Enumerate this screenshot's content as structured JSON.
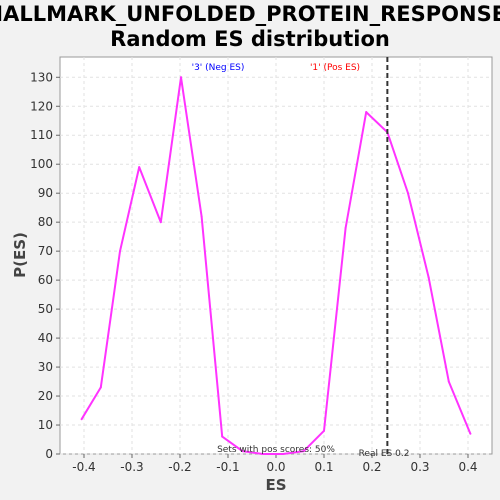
{
  "chart_data": {
    "type": "line",
    "title": "HALLMARK_UNFOLDED_PROTEIN_RESPONSE:",
    "subtitle": "Random ES distribution",
    "xlabel": "ES",
    "ylabel": "P(ES)",
    "xlim": [
      -0.45,
      0.45
    ],
    "ylim": [
      0,
      137
    ],
    "xticks": [
      "-0.4",
      "-0.3",
      "-0.2",
      "-0.1",
      "0.0",
      "0.1",
      "0.2",
      "0.3",
      "0.4"
    ],
    "xtick_values": [
      -0.4,
      -0.3,
      -0.2,
      -0.1,
      0.0,
      0.1,
      0.2,
      0.3,
      0.4
    ],
    "yticks": [
      "0",
      "10",
      "20",
      "30",
      "40",
      "50",
      "60",
      "70",
      "80",
      "90",
      "100",
      "110",
      "120",
      "130"
    ],
    "ytick_values": [
      0,
      10,
      20,
      30,
      40,
      50,
      60,
      70,
      80,
      90,
      100,
      110,
      120,
      130
    ],
    "grid": true,
    "series": [
      {
        "color": "#ff33ff",
        "x": [
          -0.405,
          -0.365,
          -0.325,
          -0.285,
          -0.24,
          -0.198,
          -0.155,
          -0.112,
          -0.07,
          -0.028,
          0.015,
          0.058,
          0.1,
          0.145,
          0.188,
          0.232,
          0.275,
          0.318,
          0.36,
          0.405
        ],
        "y": [
          12,
          23,
          70,
          99,
          80,
          130,
          82,
          6,
          1,
          0,
          0,
          1,
          8,
          78,
          118,
          111,
          90,
          61,
          25,
          7
        ]
      }
    ],
    "real_es": {
      "value": 0.232,
      "color": "#333333",
      "label": "Real ES 0.2"
    },
    "annotations": {
      "neg_label": "'3' (Neg ES)",
      "neg_color": "#0000ff",
      "pos_label": "'1' (Pos ES)",
      "pos_color": "#ff0000",
      "pos_scores": "Sets with pos scores: 50%"
    }
  }
}
